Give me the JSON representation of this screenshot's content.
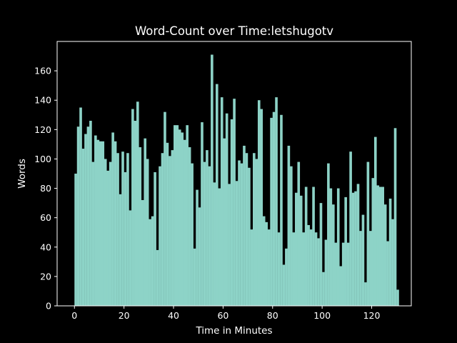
{
  "chart_data": {
    "type": "bar",
    "title": "Word-Count over Time:letshugotv",
    "xlabel": "Time in Minutes",
    "ylabel": "Words",
    "xlim": [
      -7,
      136
    ],
    "ylim": [
      0,
      180
    ],
    "grid": false,
    "bar_width_minutes": 1,
    "xticks": [
      0,
      20,
      40,
      60,
      80,
      100,
      120
    ],
    "yticks": [
      0,
      20,
      40,
      60,
      80,
      100,
      120,
      140,
      160
    ],
    "x_start_minute": 0,
    "values": [
      90,
      122,
      135,
      107,
      117,
      122,
      126,
      98,
      116,
      113,
      112,
      112,
      100,
      92,
      98,
      118,
      112,
      104,
      76,
      105,
      91,
      104,
      65,
      134,
      126,
      139,
      108,
      72,
      114,
      100,
      59,
      61,
      91,
      38,
      95,
      104,
      132,
      111,
      102,
      106,
      123,
      123,
      120,
      118,
      113,
      123,
      108,
      97,
      39,
      79,
      67,
      125,
      98,
      106,
      95,
      171,
      84,
      151,
      80,
      142,
      114,
      131,
      83,
      127,
      141,
      85,
      99,
      97,
      109,
      104,
      94,
      52,
      104,
      100,
      140,
      134,
      61,
      57,
      52,
      128,
      132,
      142,
      50,
      130,
      28,
      39,
      109,
      95,
      50,
      77,
      98,
      75,
      50,
      81,
      55,
      52,
      81,
      50,
      46,
      70,
      23,
      45,
      97,
      80,
      69,
      43,
      80,
      27,
      43,
      74,
      43,
      105,
      77,
      78,
      83,
      51,
      62,
      16,
      98,
      51,
      87,
      115,
      82,
      81,
      81,
      69,
      44,
      73,
      59,
      121,
      11
    ],
    "colors": {
      "background": "#000000",
      "bar": "#8dd3c7",
      "axes": "#ffffff",
      "text": "#ffffff"
    }
  }
}
